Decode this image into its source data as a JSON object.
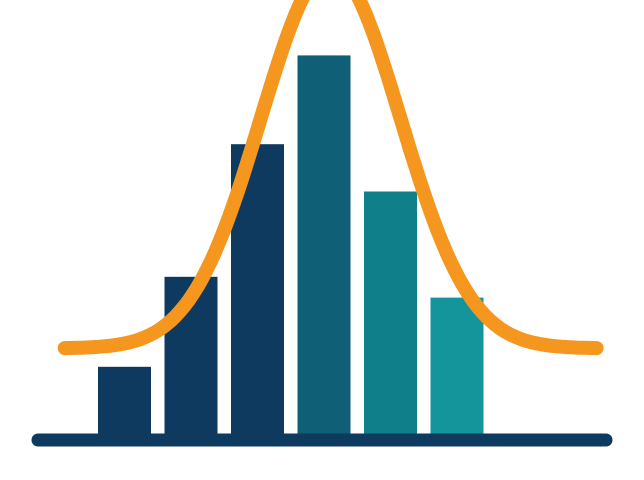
{
  "chart_data": {
    "type": "bar",
    "categories": [
      "",
      "",
      "",
      "",
      "",
      ""
    ],
    "values": [
      60,
      138,
      253,
      330,
      212,
      120
    ],
    "ylim": [
      0,
      352
    ],
    "grid": false,
    "legend": "none",
    "curve": {
      "type": "normal",
      "peak": 405,
      "baseline": 76,
      "center": 3.1,
      "sigma": 1.05,
      "xlim": [
        -0.9,
        7.1
      ]
    },
    "colors": {
      "bars": [
        "#0f3a5f",
        "#0f3a5f",
        "#0f3a5f",
        "#0f5f77",
        "#0f7f8a",
        "#13959b"
      ],
      "curve": "#f5961f",
      "baseline": "#0f3a5f",
      "background": "#ffffff"
    }
  }
}
